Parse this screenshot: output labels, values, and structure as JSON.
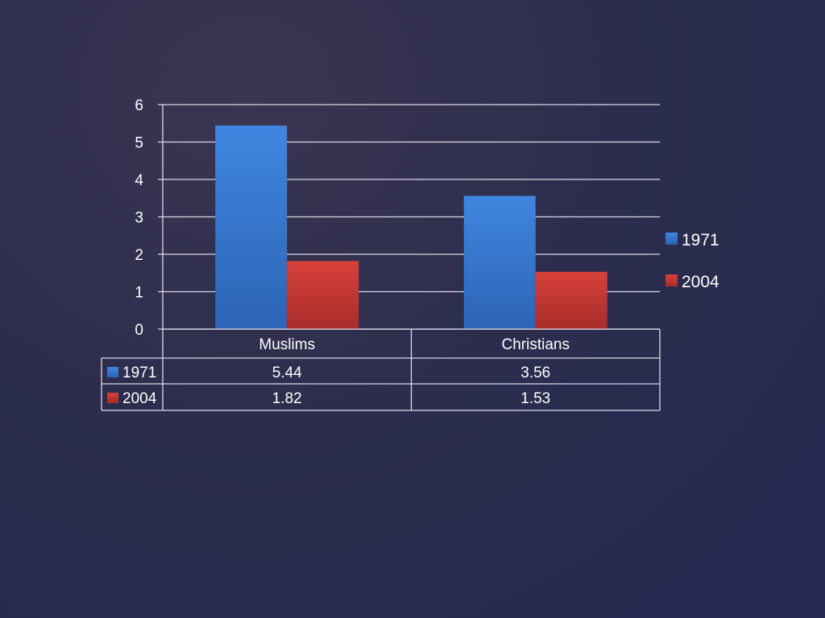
{
  "chart_data": {
    "type": "bar",
    "categories": [
      "Muslims",
      "Christians"
    ],
    "series": [
      {
        "name": "1971",
        "values": [
          5.44,
          3.56
        ],
        "color": "#3b7dd8"
      },
      {
        "name": "2004",
        "values": [
          1.82,
          1.53
        ],
        "color": "#d23a36"
      }
    ],
    "title": "",
    "xlabel": "",
    "ylabel": "",
    "ylim": [
      0,
      6
    ],
    "yticks": [
      "0",
      "1",
      "2",
      "3",
      "4",
      "5",
      "6"
    ],
    "grid": true,
    "legend_position": "right",
    "data_table": {
      "rows": [
        {
          "label": "1971",
          "cells": [
            "5.44",
            "3.56"
          ]
        },
        {
          "label": "2004",
          "cells": [
            "1.82",
            "1.53"
          ]
        }
      ]
    }
  }
}
